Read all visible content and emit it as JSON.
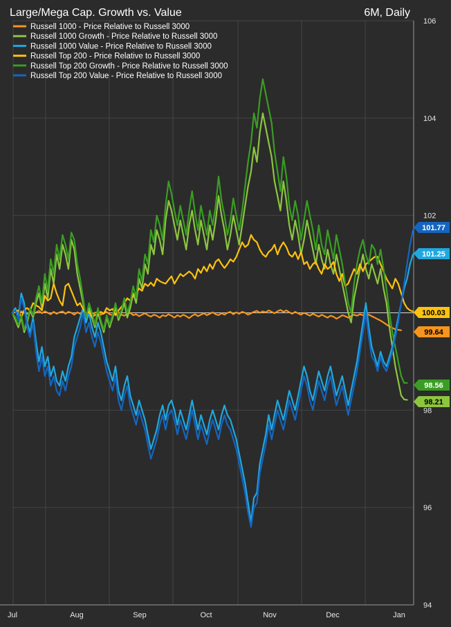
{
  "chart_data": {
    "type": "line",
    "title": "Large/Mega Cap. Growth vs. Value",
    "period_label": "6M, Daily",
    "xlabel": "",
    "ylabel": "",
    "ylim": [
      94,
      106
    ],
    "y_ticks": [
      94,
      96,
      98,
      100,
      102,
      104,
      106
    ],
    "y_tick_labels": [
      "94",
      "96",
      "98",
      "100",
      "102",
      "104",
      "106"
    ],
    "x_ticks": [
      "Jul",
      "Aug",
      "Sep",
      "Oct",
      "Nov",
      "Dec",
      "Jan"
    ],
    "reference_line": 100,
    "grid": true,
    "legend_position": "top-left",
    "series": [
      {
        "name": "Russell 1000 - Price Relative to Russell 3000",
        "color": "#f7941d",
        "last_label": "99.64",
        "values": [
          100.0,
          100.02,
          99.98,
          100.03,
          100.0,
          99.98,
          100.02,
          99.97,
          100.01,
          100.04,
          99.99,
          100.03,
          100.0,
          99.97,
          100.02,
          99.98,
          100.01,
          100.03,
          99.98,
          100.02,
          100.0,
          99.96,
          100.01,
          99.98,
          100.02,
          99.99,
          100.03,
          99.97,
          100.0,
          100.02,
          99.96,
          99.99,
          100.02,
          99.97,
          99.95,
          99.99,
          100.01,
          99.96,
          99.94,
          99.98,
          100.0,
          99.95,
          99.97,
          99.93,
          99.96,
          99.99,
          99.95,
          99.92,
          99.96,
          99.94,
          99.9,
          99.95,
          99.93,
          99.97,
          99.94,
          99.9,
          99.95,
          99.92,
          99.96,
          99.93,
          99.89,
          99.94,
          99.97,
          99.93,
          99.96,
          99.99,
          99.95,
          99.98,
          100.01,
          99.97,
          99.95,
          99.99,
          99.96,
          100.0,
          100.02,
          99.97,
          100.01,
          99.98,
          100.02,
          100.0,
          99.96,
          99.99,
          100.02,
          100.04,
          100.0,
          100.03,
          100.01,
          100.05,
          100.02,
          99.99,
          100.03,
          100.06,
          100.02,
          100.05,
          100.01,
          99.98,
          100.02,
          99.99,
          99.96,
          100.0,
          99.97,
          99.94,
          99.98,
          99.95,
          99.92,
          99.96,
          99.93,
          99.9,
          99.94,
          99.92,
          99.88,
          99.91,
          99.95,
          99.93,
          99.9,
          99.93,
          99.96,
          99.94,
          99.97,
          99.95,
          99.98,
          99.96,
          99.93,
          99.9,
          99.87,
          99.84,
          99.8,
          99.76,
          99.72,
          99.69,
          99.66,
          99.65,
          99.64
        ]
      },
      {
        "name": "Russell 1000 Growth - Price Relative to Russell 3000",
        "color": "#8cc63f",
        "last_label": "98.21",
        "values": [
          100.0,
          99.85,
          99.7,
          99.9,
          99.6,
          99.8,
          100.05,
          99.9,
          100.2,
          100.4,
          100.1,
          100.6,
          100.3,
          100.9,
          100.6,
          101.2,
          100.9,
          101.4,
          101.2,
          100.9,
          101.5,
          101.3,
          100.8,
          100.5,
          100.2,
          99.8,
          100.1,
          99.9,
          99.7,
          100.0,
          99.8,
          99.6,
          99.9,
          99.7,
          99.9,
          100.1,
          99.85,
          100.0,
          100.2,
          99.9,
          100.1,
          100.4,
          100.2,
          100.7,
          100.5,
          101.0,
          100.8,
          101.4,
          101.2,
          101.7,
          101.5,
          101.2,
          101.9,
          102.3,
          102.1,
          101.8,
          101.5,
          101.9,
          101.6,
          101.3,
          101.8,
          102.1,
          101.7,
          101.4,
          101.9,
          101.6,
          101.3,
          101.8,
          101.5,
          101.9,
          102.4,
          102.0,
          101.7,
          101.3,
          101.6,
          102.0,
          101.7,
          101.4,
          101.8,
          102.2,
          102.6,
          102.9,
          103.4,
          103.1,
          103.7,
          104.1,
          103.8,
          103.5,
          103.2,
          102.7,
          102.4,
          102.1,
          102.7,
          102.3,
          101.8,
          101.5,
          101.9,
          101.6,
          101.2,
          101.5,
          101.9,
          101.6,
          101.3,
          101.0,
          101.4,
          101.1,
          100.9,
          101.3,
          101.0,
          100.8,
          101.2,
          100.9,
          100.6,
          100.3,
          100.0,
          99.8,
          100.3,
          100.6,
          100.9,
          101.2,
          100.9,
          100.7,
          101.0,
          100.8,
          100.6,
          100.9,
          100.5,
          100.2,
          99.7,
          99.3,
          98.9,
          98.6,
          98.3,
          98.22,
          98.21
        ]
      },
      {
        "name": "Russell 1000 Value - Price Relative to Russell 3000",
        "color": "#1fa8e0",
        "last_label": "101.25",
        "values": [
          100.0,
          100.1,
          99.9,
          100.4,
          100.2,
          99.8,
          99.6,
          99.9,
          99.4,
          99.0,
          99.3,
          98.9,
          99.1,
          98.7,
          98.9,
          98.6,
          98.5,
          98.8,
          98.6,
          98.9,
          99.1,
          99.5,
          99.7,
          99.9,
          100.1,
          99.8,
          100.0,
          99.7,
          99.5,
          99.8,
          99.6,
          99.3,
          99.0,
          98.8,
          98.6,
          98.9,
          98.4,
          98.2,
          98.5,
          98.7,
          98.3,
          98.1,
          97.9,
          98.2,
          98.0,
          97.8,
          97.5,
          97.2,
          97.4,
          97.6,
          97.9,
          98.1,
          97.8,
          98.1,
          98.2,
          98.0,
          97.7,
          98.0,
          97.8,
          97.6,
          97.9,
          98.2,
          97.9,
          97.6,
          97.9,
          97.7,
          97.5,
          97.8,
          98.0,
          97.8,
          97.6,
          97.9,
          98.1,
          97.9,
          97.8,
          97.6,
          97.4,
          97.1,
          96.8,
          96.5,
          96.1,
          95.7,
          96.2,
          96.3,
          96.9,
          97.2,
          97.5,
          97.9,
          97.6,
          97.9,
          98.2,
          98.0,
          97.8,
          98.1,
          98.4,
          98.2,
          98.0,
          98.3,
          98.6,
          98.9,
          98.7,
          98.4,
          98.2,
          98.5,
          98.8,
          98.6,
          98.4,
          98.7,
          98.9,
          98.6,
          98.3,
          98.5,
          98.7,
          98.4,
          98.1,
          98.4,
          98.7,
          99.0,
          99.4,
          99.8,
          100.2,
          99.7,
          99.3,
          99.1,
          98.9,
          99.2,
          99.0,
          98.9,
          99.1,
          99.3,
          99.6,
          99.9,
          100.2,
          100.5,
          100.7,
          101.0,
          101.2,
          101.25,
          101.25
        ]
      },
      {
        "name": "Russell Top 200 - Price Relative to Russell 3000",
        "color": "#ffc20e",
        "last_label": "100.03",
        "values": [
          100.0,
          100.03,
          100.05,
          99.9,
          100.06,
          100.1,
          100.04,
          100.2,
          100.15,
          100.12,
          100.05,
          100.35,
          100.25,
          100.3,
          100.6,
          100.4,
          100.25,
          100.15,
          100.55,
          100.6,
          100.45,
          100.3,
          100.15,
          100.2,
          100.08,
          99.98,
          100.02,
          99.9,
          99.96,
          99.95,
          100.02,
          99.98,
          100.1,
          100.05,
          100.08,
          99.95,
          100.05,
          100.12,
          100.2,
          100.3,
          100.25,
          100.35,
          100.4,
          100.5,
          100.45,
          100.6,
          100.55,
          100.62,
          100.55,
          100.7,
          100.65,
          100.62,
          100.6,
          100.68,
          100.75,
          100.6,
          100.7,
          100.8,
          100.75,
          100.8,
          100.85,
          100.8,
          100.7,
          100.9,
          100.82,
          100.95,
          100.85,
          101.0,
          100.9,
          101.05,
          101.1,
          101.0,
          100.92,
          101.0,
          101.1,
          101.05,
          101.15,
          101.3,
          101.45,
          101.35,
          101.4,
          101.6,
          101.5,
          101.45,
          101.3,
          101.2,
          101.15,
          101.25,
          101.3,
          101.4,
          101.2,
          101.35,
          101.45,
          101.35,
          101.2,
          101.15,
          101.25,
          101.1,
          101.25,
          101.0,
          101.05,
          100.9,
          101.0,
          101.05,
          100.9,
          100.8,
          101.0,
          100.9,
          100.95,
          101.05,
          100.8,
          100.65,
          100.8,
          100.55,
          100.6,
          100.75,
          100.9,
          100.8,
          101.0,
          100.85,
          101.0,
          101.05,
          101.1,
          101.15,
          101.15,
          101.0,
          100.85,
          100.7,
          100.6,
          100.5,
          100.7,
          100.6,
          100.4,
          100.2,
          100.1,
          100.05,
          100.03
        ]
      },
      {
        "name": "Russell Top 200 Growth - Price Relative to Russell 3000",
        "color": "#3a9d23",
        "last_label": "98.56",
        "values": [
          100.0,
          99.9,
          99.75,
          99.95,
          99.65,
          99.85,
          100.1,
          99.95,
          100.3,
          100.55,
          100.2,
          100.8,
          100.45,
          101.1,
          100.8,
          101.4,
          101.1,
          101.6,
          101.4,
          101.1,
          101.65,
          101.5,
          101.0,
          100.7,
          100.3,
          99.9,
          100.2,
          100.0,
          99.75,
          100.1,
          99.85,
          99.65,
          99.95,
          99.75,
          99.95,
          100.2,
          99.9,
          100.05,
          100.3,
          100.0,
          100.2,
          100.55,
          100.3,
          100.9,
          100.65,
          101.2,
          101.0,
          101.7,
          101.45,
          102.0,
          101.8,
          101.5,
          102.2,
          102.7,
          102.45,
          102.1,
          101.8,
          102.2,
          101.9,
          101.6,
          102.1,
          102.5,
          102.05,
          101.7,
          102.2,
          101.9,
          101.6,
          102.1,
          101.8,
          102.2,
          102.8,
          102.3,
          102.0,
          101.6,
          101.9,
          102.35,
          102.0,
          101.7,
          102.1,
          102.6,
          103.1,
          103.5,
          104.1,
          103.8,
          104.4,
          104.8,
          104.5,
          104.2,
          103.9,
          103.3,
          102.9,
          102.5,
          103.2,
          102.8,
          102.2,
          101.9,
          102.3,
          102.0,
          101.5,
          101.9,
          102.3,
          102.0,
          101.7,
          101.3,
          101.8,
          101.4,
          101.2,
          101.7,
          101.4,
          101.1,
          101.6,
          101.3,
          101.0,
          100.6,
          100.2,
          100.0,
          100.6,
          101.0,
          101.3,
          101.5,
          101.2,
          101.0,
          101.4,
          101.3,
          101.0,
          101.3,
          100.9,
          100.5,
          100.0,
          99.6,
          99.3,
          99.0,
          98.7,
          98.56,
          98.56
        ]
      },
      {
        "name": "Russell Top 200 Value - Price Relative to Russell 3000",
        "color": "#1565c0",
        "last_label": "101.77",
        "values": [
          100.0,
          100.05,
          99.85,
          100.3,
          100.1,
          99.7,
          99.5,
          99.8,
          99.2,
          98.8,
          99.1,
          98.7,
          98.9,
          98.5,
          98.7,
          98.4,
          98.3,
          98.6,
          98.4,
          98.7,
          98.9,
          99.3,
          99.5,
          99.7,
          100.0,
          99.6,
          99.8,
          99.5,
          99.3,
          99.6,
          99.4,
          99.1,
          98.8,
          98.6,
          98.4,
          98.7,
          98.2,
          98.0,
          98.3,
          98.5,
          98.1,
          97.9,
          97.7,
          98.0,
          97.8,
          97.6,
          97.3,
          97.0,
          97.2,
          97.4,
          97.7,
          97.9,
          97.6,
          97.9,
          98.0,
          97.8,
          97.5,
          97.8,
          97.6,
          97.4,
          97.7,
          98.0,
          97.7,
          97.4,
          97.7,
          97.5,
          97.3,
          97.6,
          97.8,
          97.6,
          97.4,
          97.7,
          97.9,
          97.7,
          97.6,
          97.4,
          97.2,
          96.9,
          96.6,
          96.3,
          95.9,
          95.6,
          96.0,
          96.1,
          96.7,
          97.0,
          97.3,
          97.7,
          97.4,
          97.7,
          98.0,
          97.8,
          97.6,
          97.9,
          98.2,
          98.0,
          97.8,
          98.1,
          98.4,
          98.7,
          98.5,
          98.2,
          98.0,
          98.3,
          98.6,
          98.4,
          98.2,
          98.5,
          98.7,
          98.4,
          98.1,
          98.3,
          98.5,
          98.2,
          97.9,
          98.2,
          98.5,
          98.8,
          99.2,
          99.6,
          100.0,
          99.5,
          99.1,
          99.0,
          98.8,
          99.1,
          98.9,
          98.8,
          99.0,
          99.2,
          99.5,
          99.8,
          100.2,
          100.6,
          101.0,
          101.4,
          101.7,
          101.77,
          101.77
        ]
      }
    ]
  }
}
